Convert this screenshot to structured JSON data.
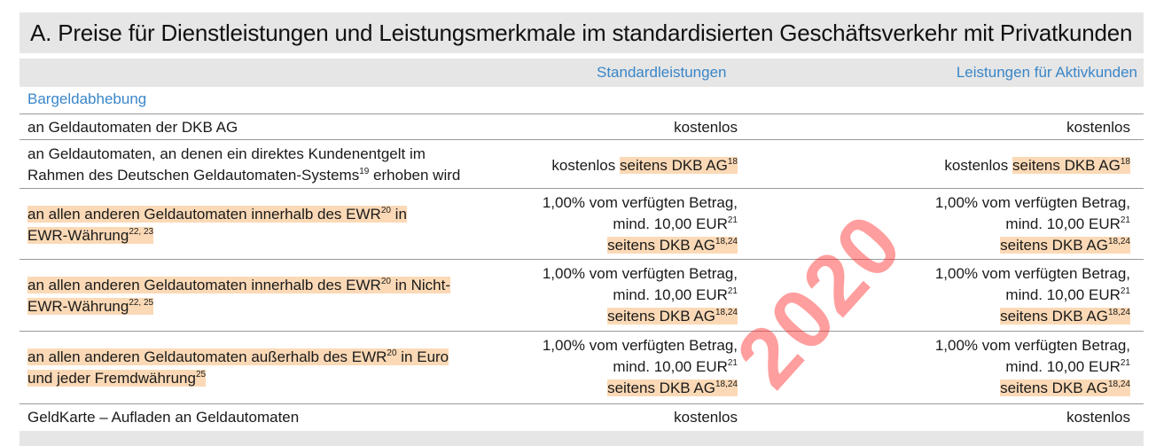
{
  "title": "A. Preise für Dienstleistungen und Leistungsmerkmale im standardisierten Geschäftsverkehr mit Privatkunden",
  "columns": {
    "standard": "Standardleistungen",
    "aktiv": "Leistungen für Aktivkunden"
  },
  "section": "Bargeldabhebung",
  "rows": [
    {
      "label_lines": [
        "an Geldautomaten der DKB AG"
      ],
      "standard": "kostenlos",
      "aktiv": "kostenlos"
    },
    {
      "label_lines": [
        "an Geldautomaten, an denen ein direktes Kundenentgelt im",
        "Rahmen des Deutschen Geldautomaten-Systems",
        "19",
        " erhoben wird"
      ],
      "standard_main": "kostenlos",
      "standard_hl": "seitens DKB AG",
      "standard_sup": "18",
      "aktiv_main": "kostenlos",
      "aktiv_hl": "seitens DKB AG",
      "aktiv_sup": "18"
    },
    {
      "label_a": "an allen anderen Geldautomaten innerhalb des EWR",
      "label_a_sup": "20",
      "label_b": " in",
      "label_c": "EWR-Währung",
      "label_c_sup": "22, 23"
    },
    {
      "label_a": "an allen anderen Geldautomaten innerhalb des EWR",
      "label_a_sup": "20",
      "label_b": " in Nicht-",
      "label_c": "EWR-Währung",
      "label_c_sup": "22, 25"
    },
    {
      "label_a": "an allen anderen Geldautomaten außerhalb des EWR",
      "label_a_sup": "20",
      "label_b": " in Euro",
      "label_c": "und jeder Fremdwährung",
      "label_c_sup": "25"
    },
    {
      "label_lines": [
        "GeldKarte – Aufladen an Geldautomaten"
      ],
      "standard": "kostenlos",
      "aktiv": "kostenlos"
    }
  ],
  "fee": {
    "line1": "1,00%  vom verfügten Betrag,",
    "line2": "mind. 10,00 EUR",
    "line2_sup": "21",
    "line3": "seitens DKB AG",
    "line3_sup": "18,24"
  },
  "watermark": "2020"
}
